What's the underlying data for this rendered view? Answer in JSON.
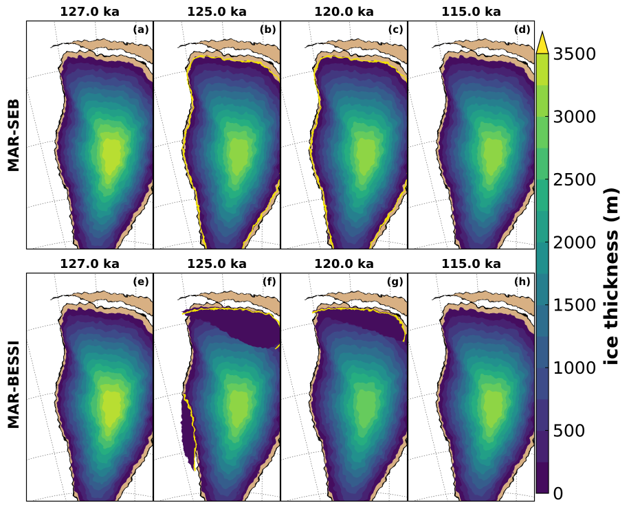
{
  "chart_data": {
    "type": "heatmap",
    "description_note": "",
    "columns": [
      "127.0 ka",
      "125.0 ka",
      "120.0 ka",
      "115.0 ka"
    ],
    "rows": [
      "MAR-SEB",
      "MAR-BESSI"
    ],
    "panels": [
      {
        "label": "(a)",
        "title": "127.0 ka",
        "row": "MAR-SEB",
        "max_thickness": 3400,
        "outline": false,
        "thin_region": "none"
      },
      {
        "label": "(b)",
        "title": "125.0 ka",
        "row": "MAR-SEB",
        "max_thickness": 3150,
        "outline": true,
        "thin_region": "none"
      },
      {
        "label": "(c)",
        "title": "120.0 ka",
        "row": "MAR-SEB",
        "max_thickness": 3150,
        "outline": true,
        "thin_region": "none"
      },
      {
        "label": "(d)",
        "title": "115.0 ka",
        "row": "MAR-SEB",
        "max_thickness": 3150,
        "outline": false,
        "thin_region": "none"
      },
      {
        "label": "(e)",
        "title": "127.0 ka",
        "row": "MAR-BESSI",
        "max_thickness": 3400,
        "outline": false,
        "thin_region": "none"
      },
      {
        "label": "(f)",
        "title": "125.0 ka",
        "row": "MAR-BESSI",
        "max_thickness": 3000,
        "outline": true,
        "thin_region": "north-and-southwest"
      },
      {
        "label": "(g)",
        "title": "120.0 ka",
        "row": "MAR-BESSI",
        "max_thickness": 2950,
        "outline": true,
        "thin_region": "north"
      },
      {
        "label": "(h)",
        "title": "115.0 ka",
        "row": "MAR-BESSI",
        "max_thickness": 3150,
        "outline": false,
        "thin_region": "none"
      }
    ],
    "colorbar": {
      "label": "ice thickness (m)",
      "ticks": [
        0,
        500,
        1000,
        1500,
        2000,
        2500,
        3000,
        3500
      ],
      "range": [
        0,
        3750
      ],
      "level_step": 250,
      "extend": "max",
      "colormap": "viridis"
    },
    "colors": {
      "land": "#d8b083",
      "outline": "#f4e400",
      "coast": "#000000"
    }
  }
}
